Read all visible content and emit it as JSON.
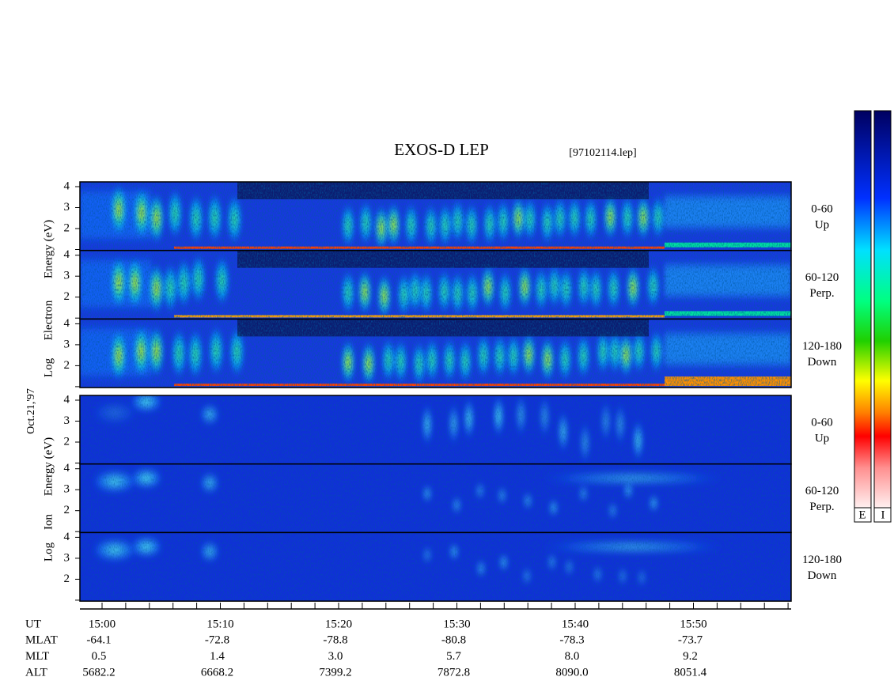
{
  "header": {
    "title": "EXOS-D LEP",
    "file": "[97102114.lep]"
  },
  "date": "Oct.21,'97",
  "groups": [
    {
      "label": [
        "Log",
        "Electron",
        "Energy (eV)"
      ],
      "panels": [
        {
          "angle": "0-60",
          "direction": "Up",
          "yticks": [
            2,
            3,
            4
          ]
        },
        {
          "angle": "60-120",
          "direction": "Perp.",
          "yticks": [
            2,
            3,
            4
          ]
        },
        {
          "angle": "120-180",
          "direction": "Down",
          "yticks": [
            2,
            3,
            4
          ]
        }
      ]
    },
    {
      "label": [
        "Log",
        "Ion",
        "Energy (eV)"
      ],
      "panels": [
        {
          "angle": "0-60",
          "direction": "Up",
          "yticks": [
            2,
            3,
            4
          ]
        },
        {
          "angle": "60-120",
          "direction": "Perp.",
          "yticks": [
            2,
            3,
            4
          ]
        },
        {
          "angle": "120-180",
          "direction": "Down",
          "yticks": [
            2,
            3,
            4
          ]
        }
      ]
    }
  ],
  "time_axis": {
    "rows": [
      {
        "name": "UT",
        "values": [
          "15:00",
          "15:10",
          "15:20",
          "15:30",
          "15:40",
          "15:50"
        ]
      },
      {
        "name": "MLAT",
        "values": [
          "-64.1",
          "-72.8",
          "-78.8",
          "-80.8",
          "-78.3",
          "-73.7"
        ]
      },
      {
        "name": "MLT",
        "values": [
          "0.5",
          "1.4",
          "3.0",
          "5.7",
          "8.0",
          "9.2"
        ]
      },
      {
        "name": "ALT",
        "values": [
          "5682.2",
          "6668.2",
          "7399.2",
          "7872.8",
          "8090.0",
          "8051.4"
        ]
      }
    ]
  },
  "colorbars": [
    "E",
    "I"
  ]
}
